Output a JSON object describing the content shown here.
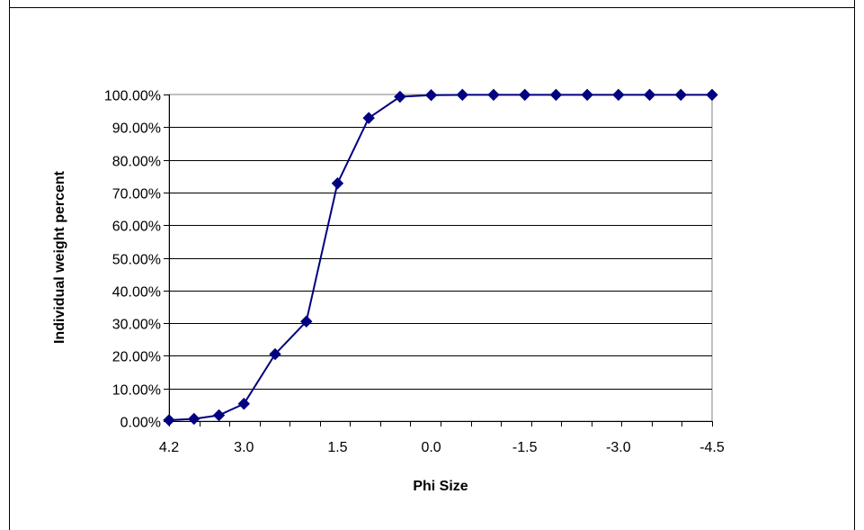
{
  "chart_data": {
    "type": "line",
    "xlabel": "Phi Size",
    "ylabel": "Individual weight percent",
    "x_tick_labels": [
      "4.2",
      "3.0",
      "1.5",
      "0.0",
      "-1.5",
      "-3.0",
      "-4.5"
    ],
    "y_tick_labels": [
      "0.00%",
      "10.00%",
      "20.00%",
      "30.00%",
      "40.00%",
      "50.00%",
      "60.00%",
      "70.00%",
      "80.00%",
      "90.00%",
      "100.00%"
    ],
    "ylim": [
      0,
      100
    ],
    "grid": "horizontal",
    "legend": "none",
    "series": [
      {
        "color": "#000080",
        "marker": "diamond",
        "x": [
          4.2,
          3.8,
          3.4,
          3.0,
          2.5,
          2.0,
          1.5,
          1.0,
          0.5,
          0.0,
          -0.5,
          -1.0,
          -1.5,
          -2.0,
          -2.5,
          -3.0,
          -3.5,
          -4.0,
          -4.5
        ],
        "values": [
          0.3,
          0.7,
          1.8,
          5.3,
          20.5,
          30.5,
          72.8,
          92.8,
          99.3,
          99.8,
          99.9,
          99.9,
          99.9,
          99.9,
          99.9,
          99.9,
          99.9,
          99.9,
          99.9
        ]
      }
    ]
  }
}
